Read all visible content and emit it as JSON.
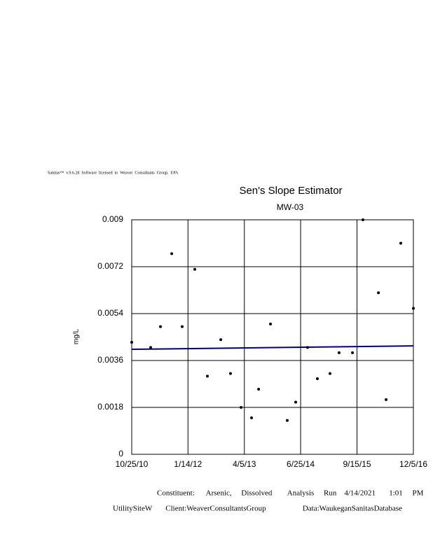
{
  "header": "Sanitas™  v.9.6.28  Software  licensed  to  Weaver  Consultants  Group.  EPA",
  "chart_data": {
    "type": "scatter",
    "title": "Sen's Slope Estimator",
    "subtitle": "MW-03",
    "y_label": "mg/L",
    "x": [
      "2010-10-25",
      "2011-03-24",
      "2011-06-10",
      "2011-09-07",
      "2011-11-29",
      "2012-03-08",
      "2012-06-16",
      "2012-09-30",
      "2012-12-16",
      "2013-03-10",
      "2013-06-01",
      "2013-07-27",
      "2013-10-29",
      "2014-03-11",
      "2014-05-17",
      "2014-08-19",
      "2014-11-05",
      "2015-02-13",
      "2015-04-26",
      "2015-08-10",
      "2015-11-01",
      "2016-03-03",
      "2016-05-03",
      "2016-08-27",
      "2016-12-05"
    ],
    "values": [
      0.0043,
      0.0041,
      0.0049,
      0.0077,
      0.0049,
      0.0071,
      0.003,
      0.0044,
      0.0031,
      0.0018,
      0.0014,
      0.0025,
      0.005,
      0.0013,
      0.002,
      0.0041,
      0.0029,
      0.0031,
      0.0039,
      0.0039,
      0.009,
      0.0062,
      0.0021,
      0.0081,
      0.0056
    ],
    "color": "#000000",
    "trend": {
      "x": [
        "2010-10-25",
        "2016-12-05"
      ],
      "values": [
        0.00403,
        0.00416
      ],
      "color": "#00007f"
    },
    "xlim": [
      "2010-10-25",
      "2016-12-05"
    ],
    "xticks": [
      {
        "value": "2010-10-25",
        "label": "10/25/10"
      },
      {
        "value": "2012-01-14",
        "label": "1/14/12"
      },
      {
        "value": "2013-04-05",
        "label": "4/5/13"
      },
      {
        "value": "2014-06-25",
        "label": "6/25/14"
      },
      {
        "value": "2015-09-15",
        "label": "9/15/15"
      },
      {
        "value": "2016-12-05",
        "label": "12/5/16"
      }
    ],
    "ylim": [
      0,
      0.009
    ],
    "yticks": [
      0,
      0.0018,
      0.0036,
      0.0054,
      0.0072,
      0.009
    ],
    "grid": true
  },
  "footer": [
    "Constituent:      Arsenic,     Dissolved        Analysis     Run    4/14/2021       1:01     PM",
    "UtilitySiteW       Client:WeaverConsultantsGroup                   Data:WaukeganSanitasDatabase"
  ]
}
